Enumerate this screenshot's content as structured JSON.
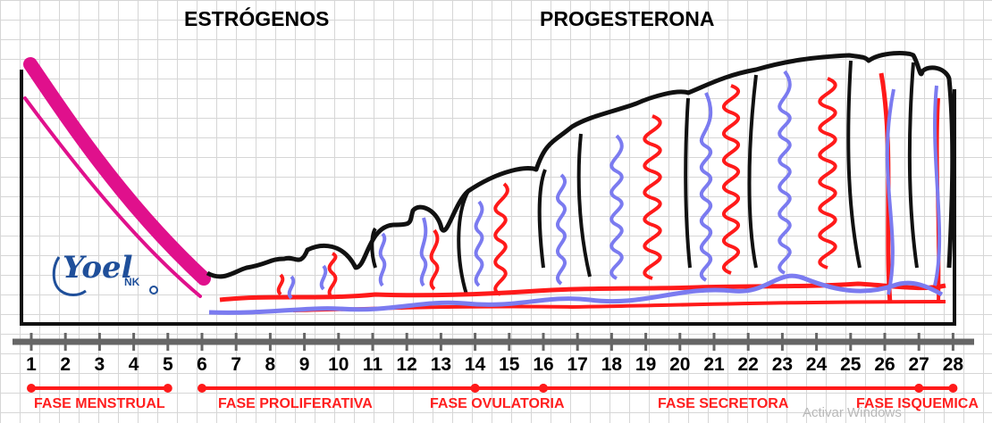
{
  "hormones": {
    "estrogen": "ESTRÓGENOS",
    "progesterone": "PROGESTERONA"
  },
  "days": [
    "1",
    "2",
    "3",
    "4",
    "5",
    "6",
    "7",
    "8",
    "9",
    "10",
    "11",
    "12",
    "13",
    "14",
    "15",
    "16",
    "17",
    "18",
    "19",
    "20",
    "21",
    "22",
    "23",
    "24",
    "25",
    "26",
    "27",
    "28"
  ],
  "phases": [
    {
      "label": "FASE MENSTRUAL"
    },
    {
      "label": "FASE PROLIFERATIVA"
    },
    {
      "label": "FASE OVULATORIA"
    },
    {
      "label": "FASE SECRETORA"
    },
    {
      "label": "FASE ISQUEMICA"
    }
  ],
  "logo": {
    "main": "Yoel",
    "sub": "NK"
  },
  "watermark": "Activar Windows",
  "colors": {
    "red": "#ff1a1a",
    "blue": "#7b7bf0",
    "magenta": "#e0108c",
    "outline": "#111111",
    "axis": "#666666"
  }
}
